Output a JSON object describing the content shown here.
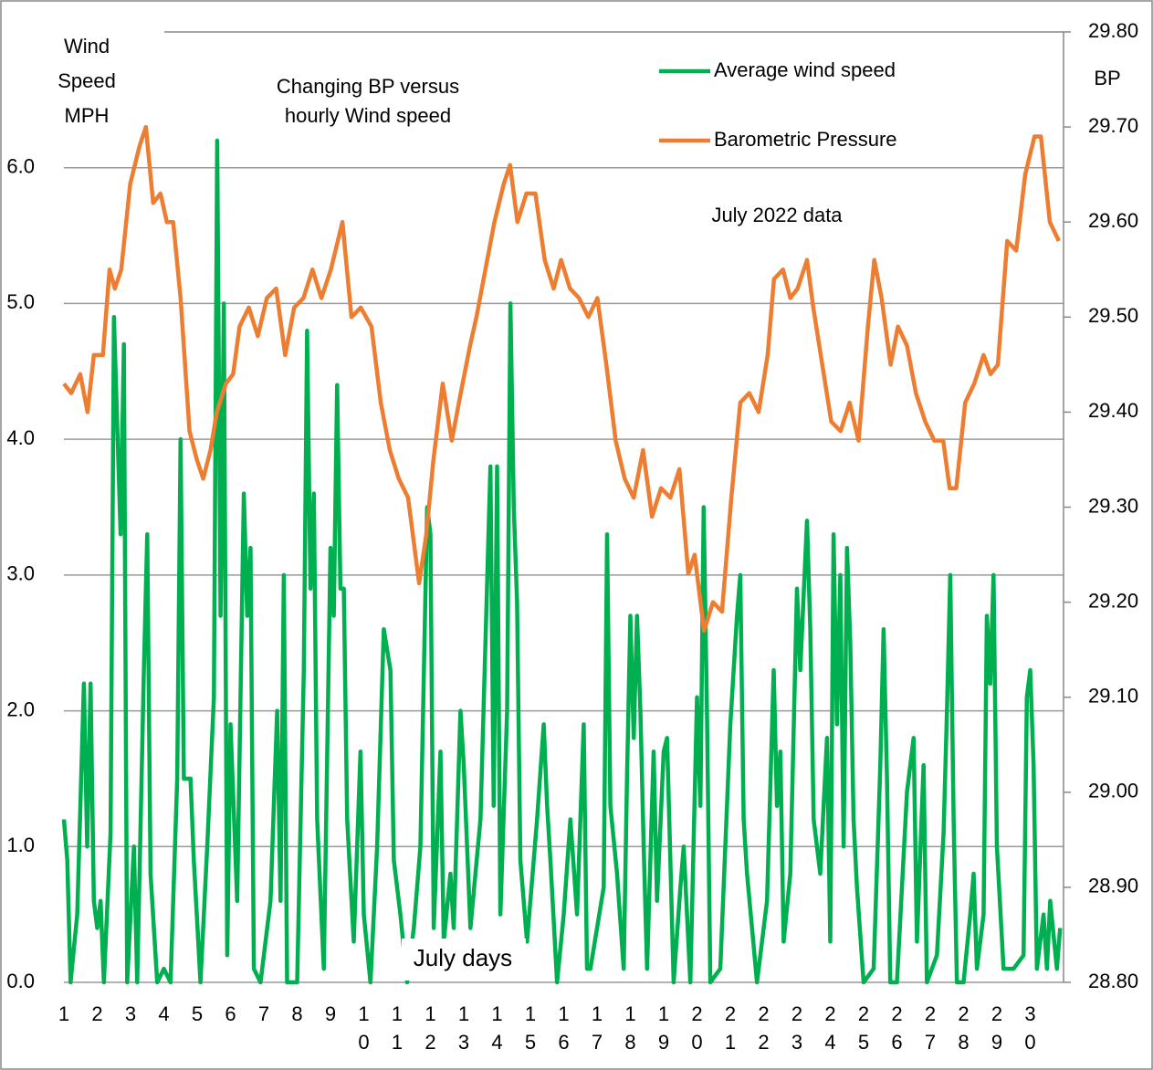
{
  "chart_data": {
    "type": "line",
    "title": [
      "Changing BP versus",
      "hourly Wind speed"
    ],
    "y_label": [
      "Wind",
      "Speed",
      "MPH"
    ],
    "y2_label": "BP",
    "x_label": "July days",
    "annotation": "July 2022 data",
    "xlim": [
      1,
      31
    ],
    "xticks": [
      1,
      2,
      3,
      4,
      5,
      6,
      7,
      8,
      9,
      10,
      11,
      12,
      13,
      14,
      15,
      16,
      17,
      18,
      19,
      20,
      21,
      22,
      23,
      24,
      25,
      26,
      27,
      28,
      29,
      30
    ],
    "ylim": [
      0,
      7
    ],
    "yticks": [
      {
        "value": 0,
        "label": "0.0"
      },
      {
        "value": 1,
        "label": "1.0"
      },
      {
        "value": 2,
        "label": "2.0"
      },
      {
        "value": 3,
        "label": "3.0"
      },
      {
        "value": 4,
        "label": "4.0"
      },
      {
        "value": 5,
        "label": "5.0"
      },
      {
        "value": 6,
        "label": "6.0"
      }
    ],
    "y2lim": [
      28.8,
      29.8
    ],
    "y2ticks": [
      {
        "value": 28.8,
        "label": "28.80"
      },
      {
        "value": 28.9,
        "label": "28.90"
      },
      {
        "value": 29.0,
        "label": "29.00"
      },
      {
        "value": 29.1,
        "label": "29.10"
      },
      {
        "value": 29.2,
        "label": "29.20"
      },
      {
        "value": 29.3,
        "label": "29.30"
      },
      {
        "value": 29.4,
        "label": "29.40"
      },
      {
        "value": 29.5,
        "label": "29.50"
      },
      {
        "value": 29.6,
        "label": "29.60"
      },
      {
        "value": 29.7,
        "label": "29.70"
      },
      {
        "value": 29.8,
        "label": "29.80"
      }
    ],
    "grid": true,
    "series": [
      {
        "name": "Average wind speed",
        "color": "#00b050",
        "axis": "y",
        "x": [
          1.0,
          1.1,
          1.2,
          1.4,
          1.6,
          1.7,
          1.8,
          1.9,
          2.0,
          2.1,
          2.2,
          2.4,
          2.5,
          2.7,
          2.8,
          2.9,
          3.1,
          3.2,
          3.4,
          3.5,
          3.6,
          3.8,
          4.0,
          4.2,
          4.4,
          4.5,
          4.6,
          4.8,
          4.9,
          5.1,
          5.3,
          5.5,
          5.6,
          5.7,
          5.8,
          5.9,
          6.0,
          6.2,
          6.4,
          6.5,
          6.6,
          6.7,
          6.9,
          7.2,
          7.4,
          7.5,
          7.6,
          7.7,
          8.0,
          8.2,
          8.3,
          8.4,
          8.5,
          8.6,
          8.8,
          9.0,
          9.1,
          9.2,
          9.3,
          9.4,
          9.5,
          9.7,
          9.8,
          9.9,
          10.0,
          10.2,
          10.4,
          10.6,
          10.8,
          10.9,
          11.1,
          11.3,
          11.5,
          11.7,
          11.9,
          12.0,
          12.1,
          12.3,
          12.4,
          12.6,
          12.7,
          12.9,
          13.0,
          13.2,
          13.5,
          13.8,
          13.9,
          14.0,
          14.1,
          14.3,
          14.4,
          14.5,
          14.6,
          14.7,
          14.9,
          15.2,
          15.4,
          15.5,
          15.6,
          15.8,
          16.0,
          16.2,
          16.4,
          16.6,
          16.7,
          16.8,
          17.0,
          17.2,
          17.3,
          17.4,
          17.6,
          17.8,
          17.9,
          18.0,
          18.1,
          18.2,
          18.3,
          18.4,
          18.5,
          18.7,
          18.8,
          19.0,
          19.1,
          19.3,
          19.5,
          19.6,
          19.8,
          20.0,
          20.1,
          20.2,
          20.3,
          20.4,
          20.7,
          21.0,
          21.2,
          21.3,
          21.4,
          21.5,
          21.8,
          22.1,
          22.3,
          22.4,
          22.5,
          22.6,
          22.8,
          23.0,
          23.1,
          23.3,
          23.4,
          23.5,
          23.7,
          23.9,
          24.0,
          24.1,
          24.2,
          24.3,
          24.4,
          24.5,
          24.6,
          24.7,
          24.8,
          25.0,
          25.3,
          25.5,
          25.6,
          25.7,
          25.8,
          26.0,
          26.3,
          26.5,
          26.6,
          26.8,
          26.9,
          27.2,
          27.4,
          27.5,
          27.6,
          27.7,
          27.8,
          28.0,
          28.2,
          28.3,
          28.4,
          28.6,
          28.7,
          28.8,
          28.9,
          29.0,
          29.2,
          29.5,
          29.8,
          29.9,
          30.0,
          30.1,
          30.2,
          30.4,
          30.5,
          30.6,
          30.8,
          30.9
        ],
        "values": [
          1.2,
          0.9,
          0,
          0.5,
          2.2,
          1.0,
          2.2,
          0.6,
          0.4,
          0.6,
          0,
          1.1,
          4.9,
          3.3,
          4.7,
          0,
          1.0,
          0,
          2.3,
          3.3,
          0.8,
          0,
          0.1,
          0,
          1.5,
          4.0,
          1.5,
          1.5,
          0.9,
          0,
          1.0,
          2.1,
          6.2,
          2.7,
          5.0,
          0.2,
          1.9,
          0.6,
          3.6,
          2.7,
          3.2,
          0.1,
          0,
          0.6,
          2.0,
          0.6,
          3.0,
          0,
          0,
          2.3,
          4.8,
          2.9,
          3.6,
          1.2,
          0.1,
          3.2,
          2.7,
          4.4,
          2.9,
          2.9,
          1.2,
          0.3,
          1.0,
          1.7,
          0.5,
          0,
          1.0,
          2.6,
          2.3,
          0.9,
          0.5,
          0,
          0.4,
          1.0,
          3.5,
          3.3,
          0.4,
          1.7,
          0.3,
          0.8,
          0.4,
          2.0,
          1.6,
          0.4,
          1.2,
          3.8,
          1.3,
          3.8,
          0.5,
          2.0,
          5.0,
          3.5,
          2.8,
          0.9,
          0.3,
          1.2,
          1.9,
          1.3,
          0.9,
          0,
          0.5,
          1.2,
          0.5,
          1.9,
          0.1,
          0.1,
          0.4,
          0.7,
          3.3,
          1.3,
          0.8,
          0.1,
          1.5,
          2.7,
          1.8,
          2.7,
          2.0,
          1.0,
          0.1,
          1.7,
          0.6,
          1.7,
          1.8,
          0,
          0.7,
          1.0,
          0,
          2.1,
          1.3,
          3.5,
          2.0,
          0,
          0.1,
          1.9,
          2.7,
          3.0,
          1.2,
          0.8,
          0,
          0.6,
          2.3,
          1.3,
          1.7,
          0.3,
          0.8,
          2.9,
          2.3,
          3.4,
          2.6,
          1.2,
          0.8,
          1.8,
          0.3,
          3.3,
          1.9,
          3.0,
          1.0,
          3.2,
          2.5,
          1.2,
          0.7,
          0,
          0.1,
          1.6,
          2.6,
          1.5,
          0,
          0,
          1.4,
          1.8,
          0.3,
          1.6,
          0,
          0.2,
          1.1,
          2.0,
          3.0,
          1.2,
          0,
          0,
          0.5,
          0.8,
          0.1,
          0.5,
          2.7,
          2.2,
          3.0,
          1.0,
          0.1,
          0.1,
          0.2,
          2.1,
          2.3,
          1.6,
          0.1,
          0.5,
          0.1,
          0.6,
          0.1,
          0.4
        ]
      },
      {
        "name": "Barometric Pressure",
        "color": "#ed7d31",
        "axis": "y2",
        "x": [
          1.0,
          1.22,
          1.49,
          1.71,
          1.9,
          2.17,
          2.37,
          2.53,
          2.72,
          2.99,
          3.27,
          3.46,
          3.68,
          3.9,
          4.09,
          4.28,
          4.5,
          4.77,
          4.99,
          5.18,
          5.4,
          5.59,
          5.86,
          6.08,
          6.27,
          6.55,
          6.82,
          7.09,
          7.37,
          7.64,
          7.91,
          8.19,
          8.46,
          8.73,
          9.01,
          9.36,
          9.63,
          9.91,
          10.23,
          10.51,
          10.78,
          11.05,
          11.33,
          11.66,
          11.87,
          12.09,
          12.37,
          12.64,
          12.91,
          13.19,
          13.38,
          13.65,
          13.92,
          14.2,
          14.39,
          14.61,
          14.88,
          15.15,
          15.43,
          15.7,
          15.92,
          16.19,
          16.46,
          16.74,
          17.01,
          17.28,
          17.56,
          17.83,
          18.1,
          18.38,
          18.65,
          18.92,
          19.2,
          19.47,
          19.74,
          19.93,
          20.21,
          20.48,
          20.75,
          21.03,
          21.3,
          21.57,
          21.85,
          22.12,
          22.31,
          22.58,
          22.8,
          23.02,
          23.3,
          23.49,
          23.76,
          24.03,
          24.31,
          24.58,
          24.85,
          25.13,
          25.32,
          25.54,
          25.81,
          26.03,
          26.3,
          26.57,
          26.85,
          27.12,
          27.39,
          27.58,
          27.78,
          28.05,
          28.32,
          28.6,
          28.81,
          29.03,
          29.31,
          29.58,
          29.85,
          30.13,
          30.32,
          30.59,
          30.86
        ],
        "values": [
          29.43,
          29.42,
          29.44,
          29.4,
          29.46,
          29.46,
          29.55,
          29.53,
          29.55,
          29.64,
          29.68,
          29.7,
          29.62,
          29.63,
          29.6,
          29.6,
          29.52,
          29.38,
          29.35,
          29.33,
          29.36,
          29.4,
          29.43,
          29.44,
          29.49,
          29.51,
          29.48,
          29.52,
          29.53,
          29.46,
          29.51,
          29.52,
          29.55,
          29.52,
          29.55,
          29.6,
          29.5,
          29.51,
          29.49,
          29.41,
          29.36,
          29.33,
          29.31,
          29.22,
          29.27,
          29.35,
          29.43,
          29.37,
          29.42,
          29.47,
          29.5,
          29.55,
          29.6,
          29.64,
          29.66,
          29.6,
          29.63,
          29.63,
          29.56,
          29.53,
          29.56,
          29.53,
          29.52,
          29.5,
          29.52,
          29.45,
          29.37,
          29.33,
          29.31,
          29.36,
          29.29,
          29.32,
          29.31,
          29.34,
          29.23,
          29.25,
          29.17,
          29.2,
          29.19,
          29.31,
          29.41,
          29.42,
          29.4,
          29.46,
          29.54,
          29.55,
          29.52,
          29.53,
          29.56,
          29.51,
          29.45,
          29.39,
          29.38,
          29.41,
          29.37,
          29.49,
          29.56,
          29.52,
          29.45,
          29.49,
          29.47,
          29.42,
          29.39,
          29.37,
          29.37,
          29.32,
          29.32,
          29.41,
          29.43,
          29.46,
          29.44,
          29.45,
          29.58,
          29.57,
          29.65,
          29.69,
          29.69,
          29.6,
          29.58
        ]
      }
    ]
  }
}
